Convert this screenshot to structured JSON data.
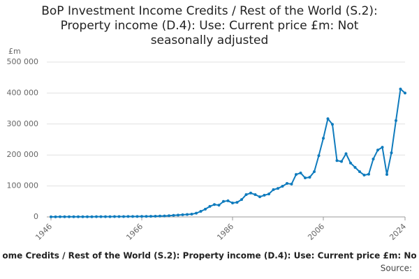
{
  "chart_data": {
    "type": "line",
    "title": "BoP Investment Income Credits / Rest of the World (S.2): Property income (D.4): Use: Current price £m: Not seasonally adjusted",
    "y_label": "£m",
    "footer": "ome Credits / Rest of the World (S.2): Property income (D.4): Use: Current price £m: No",
    "source": "Source:",
    "x": [
      1946,
      1947,
      1948,
      1949,
      1950,
      1951,
      1952,
      1953,
      1954,
      1955,
      1956,
      1957,
      1958,
      1959,
      1960,
      1961,
      1962,
      1963,
      1964,
      1965,
      1966,
      1967,
      1968,
      1969,
      1970,
      1971,
      1972,
      1973,
      1974,
      1975,
      1976,
      1977,
      1978,
      1979,
      1980,
      1981,
      1982,
      1983,
      1984,
      1985,
      1986,
      1987,
      1988,
      1989,
      1990,
      1991,
      1992,
      1993,
      1994,
      1995,
      1996,
      1997,
      1998,
      1999,
      2000,
      2001,
      2002,
      2003,
      2004,
      2005,
      2006,
      2007,
      2008,
      2009,
      2010,
      2011,
      2012,
      2013,
      2014,
      2015,
      2016,
      2017,
      2018,
      2019,
      2020,
      2021,
      2022,
      2023,
      2024
    ],
    "series": [
      {
        "name": "Property income",
        "color": "#0f7bbd",
        "values": [
          400,
          400,
          450,
          500,
          500,
          550,
          600,
          600,
          650,
          700,
          750,
          800,
          850,
          900,
          1000,
          1100,
          1200,
          1300,
          1400,
          1500,
          1600,
          1800,
          2000,
          2300,
          2700,
          3200,
          4000,
          5000,
          6000,
          7000,
          8000,
          9000,
          12000,
          18000,
          25000,
          34000,
          40000,
          38000,
          50000,
          52000,
          45000,
          47000,
          56000,
          72000,
          77000,
          72000,
          65000,
          70000,
          74000,
          88000,
          92000,
          99000,
          108000,
          106000,
          137000,
          142000,
          126000,
          128000,
          146000,
          198000,
          254000,
          317000,
          299000,
          182000,
          179000,
          204000,
          174000,
          160000,
          146000,
          135000,
          138000,
          187000,
          216000,
          225000,
          137000,
          207000,
          311000,
          413000,
          400000
        ]
      }
    ],
    "xlim": [
      1946,
      2024
    ],
    "xticks": [
      1946,
      1966,
      1986,
      2006,
      2024
    ],
    "ylim": [
      0,
      500000
    ],
    "yticks": [
      0,
      {
        "value": 100000,
        "label": "100 000"
      },
      {
        "value": 200000,
        "label": "200 000"
      },
      {
        "value": 300000,
        "label": "300 000"
      },
      {
        "value": 400000,
        "label": "400 000"
      },
      {
        "value": 500000,
        "label": "500 000"
      }
    ],
    "grid": true
  }
}
